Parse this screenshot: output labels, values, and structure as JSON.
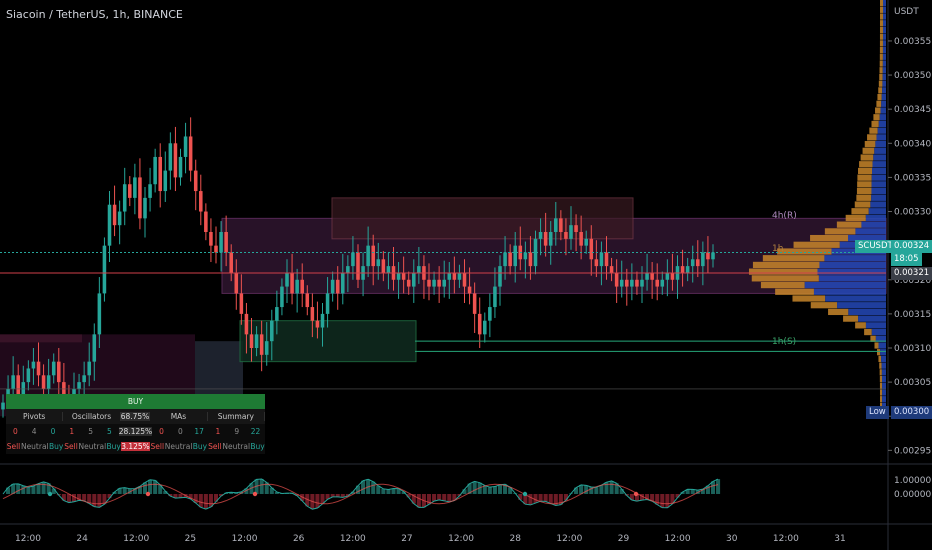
{
  "header": {
    "title": "Siacoin / TetherUS, 1h, BINANCE"
  },
  "price_axis": {
    "currency": "USDT",
    "ticks": [
      "0.00355",
      "0.00350",
      "0.00345",
      "0.00340",
      "0.00335",
      "0.00330",
      "0.00325",
      "0.00320",
      "0.00315",
      "0.00310",
      "0.00305",
      "0.00300",
      "0.00295"
    ],
    "last_symbol": "SCUSDT",
    "last_price": "0.00324",
    "countdown": "18:05",
    "ref_price": "0.00321",
    "low_label": "Low",
    "low_price": "0.00300"
  },
  "osc_axis": {
    "ticks": [
      "1.00000",
      "0.00000"
    ]
  },
  "time_axis": {
    "ticks": [
      "12:00",
      "24",
      "12:00",
      "25",
      "12:00",
      "26",
      "12:00",
      "27",
      "12:00",
      "28",
      "12:00",
      "29",
      "12:00",
      "30",
      "12:00",
      "31"
    ]
  },
  "annotations": {
    "pivot_r": "4h(R)",
    "pivot_s": "1h(S)",
    "pivot_mid": "1h"
  },
  "ta_table": {
    "signal": "BUY",
    "headers": [
      "Pivots",
      "Oscillators",
      "68.75%",
      "MAs",
      "Summary"
    ],
    "values": [
      "0",
      "4",
      "0",
      "1",
      "5",
      "5",
      "28.125%",
      "0",
      "0",
      "17",
      "1",
      "9",
      "22"
    ],
    "labels": [
      "Sell",
      "Neutral",
      "Buy",
      "Sell",
      "Neutral",
      "Buy",
      "3.125%",
      "Sell",
      "Neutral",
      "Buy",
      "Sell",
      "Neutral",
      "Buy"
    ]
  },
  "colors": {
    "up": "#26a69a",
    "down": "#ef5350",
    "buy": "#1e7b34",
    "vp_up": "#2549b8",
    "vp_down": "#c8862a"
  },
  "chart_data": {
    "type": "candlestick",
    "title": "Siacoin / TetherUS, 1h, BINANCE",
    "ylabel": "USDT",
    "ylim": [
      0.00293,
      0.00361
    ],
    "x_ticks": [
      "12:00",
      "24",
      "12:00",
      "25",
      "12:00",
      "26",
      "12:00",
      "27",
      "12:00",
      "28",
      "12:00",
      "29",
      "12:00",
      "30",
      "12:00",
      "31"
    ],
    "close_series": [
      0.00302,
      0.00304,
      0.00306,
      0.00303,
      0.00305,
      0.00307,
      0.00308,
      0.00306,
      0.00304,
      0.00306,
      0.00308,
      0.00305,
      0.00303,
      0.00301,
      0.00304,
      0.00305,
      0.00306,
      0.00308,
      0.00312,
      0.00318,
      0.00325,
      0.00331,
      0.00328,
      0.0033,
      0.00334,
      0.00332,
      0.00335,
      0.00329,
      0.00332,
      0.00334,
      0.00338,
      0.00333,
      0.00336,
      0.0034,
      0.00335,
      0.00338,
      0.00341,
      0.00336,
      0.00333,
      0.0033,
      0.00327,
      0.00325,
      0.00324,
      0.00327,
      0.00324,
      0.00321,
      0.00318,
      0.00315,
      0.00312,
      0.0031,
      0.00312,
      0.00309,
      0.00311,
      0.00314,
      0.00316,
      0.00319,
      0.00321,
      0.00318,
      0.0032,
      0.00318,
      0.00316,
      0.00314,
      0.00313,
      0.00315,
      0.00318,
      0.0032,
      0.00318,
      0.00321,
      0.00322,
      0.00324,
      0.0032,
      0.00322,
      0.00325,
      0.00322,
      0.00323,
      0.00321,
      0.00322,
      0.0032,
      0.00321,
      0.0032,
      0.00319,
      0.00321,
      0.00322,
      0.0032,
      0.00319,
      0.0032,
      0.00319,
      0.0032,
      0.00321,
      0.0032,
      0.00321,
      0.00319,
      0.00318,
      0.00315,
      0.00312,
      0.00314,
      0.00316,
      0.00319,
      0.00322,
      0.00324,
      0.00322,
      0.00325,
      0.00323,
      0.00324,
      0.00322,
      0.00326,
      0.00327,
      0.00325,
      0.00327,
      0.00329,
      0.00327,
      0.00326,
      0.00328,
      0.00327,
      0.00325,
      0.00326,
      0.00323,
      0.00322,
      0.00324,
      0.00322,
      0.00321,
      0.00319,
      0.0032,
      0.00319,
      0.0032,
      0.00319,
      0.0032,
      0.00321,
      0.0032,
      0.00319,
      0.0032,
      0.00321,
      0.0032,
      0.00322,
      0.00321,
      0.00322,
      0.00323,
      0.00322,
      0.00324,
      0.00323,
      0.00324
    ],
    "zones": [
      {
        "label": "4h(R)",
        "low": 0.00318,
        "high": 0.00329
      },
      {
        "label": "1h(S)",
        "low": 0.00308,
        "high": 0.00314
      },
      {
        "label": "",
        "low": 0.00326,
        "high": 0.00332
      }
    ],
    "levels": [
      0.00321,
      0.00311,
      0.0031
    ],
    "volume_profile": {
      "price_low": 0.003,
      "price_high": 0.00361,
      "bins": 62,
      "peak_price": 0.00321
    },
    "oscillator": {
      "ylim": [
        -1,
        1
      ],
      "ticks": [
        1,
        0
      ]
    },
    "indicator_table": {
      "signal": "BUY",
      "oscillators_buy_pct": 68.75,
      "neutral_pct": 28.125,
      "sell_pct": 3.125
    }
  }
}
